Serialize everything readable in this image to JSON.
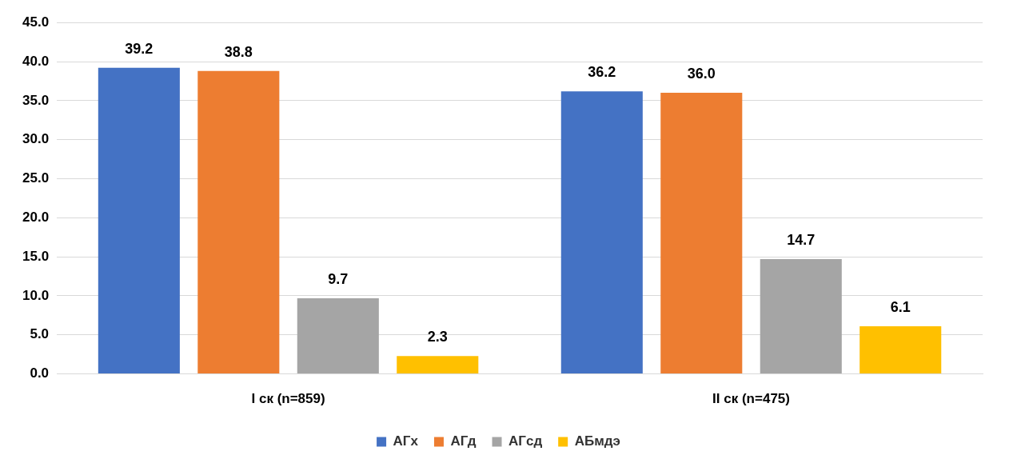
{
  "chart_data": {
    "type": "bar",
    "categories": [
      "I ск (n=859)",
      "II ск (n=475)"
    ],
    "series": [
      {
        "name": "АГх",
        "color": "#4472c4",
        "values": [
          39.2,
          36.2
        ],
        "value_labels": [
          "39.2",
          "36.2"
        ]
      },
      {
        "name": "АГд",
        "color": "#ed7d31",
        "values": [
          38.8,
          36.0
        ],
        "value_labels": [
          "38.8",
          "36.0"
        ]
      },
      {
        "name": "АГсд",
        "color": "#a5a5a5",
        "values": [
          9.7,
          14.7
        ],
        "value_labels": [
          "9.7",
          "14.7"
        ]
      },
      {
        "name": "АБмдэ",
        "color": "#ffc000",
        "values": [
          2.3,
          6.1
        ],
        "value_labels": [
          "2.3",
          "6.1"
        ]
      }
    ],
    "ylim": [
      0,
      45
    ],
    "yticks": [
      {
        "value": 0,
        "label": "0.0"
      },
      {
        "value": 5,
        "label": "5.0"
      },
      {
        "value": 10,
        "label": "10.0"
      },
      {
        "value": 15,
        "label": "15.0"
      },
      {
        "value": 20,
        "label": "20.0"
      },
      {
        "value": 25,
        "label": "25.0"
      },
      {
        "value": 30,
        "label": "30.0"
      },
      {
        "value": 35,
        "label": "35.0"
      },
      {
        "value": 40,
        "label": "40.0"
      },
      {
        "value": 45,
        "label": "45.0"
      }
    ],
    "grid": "y",
    "legend": "bottom"
  }
}
